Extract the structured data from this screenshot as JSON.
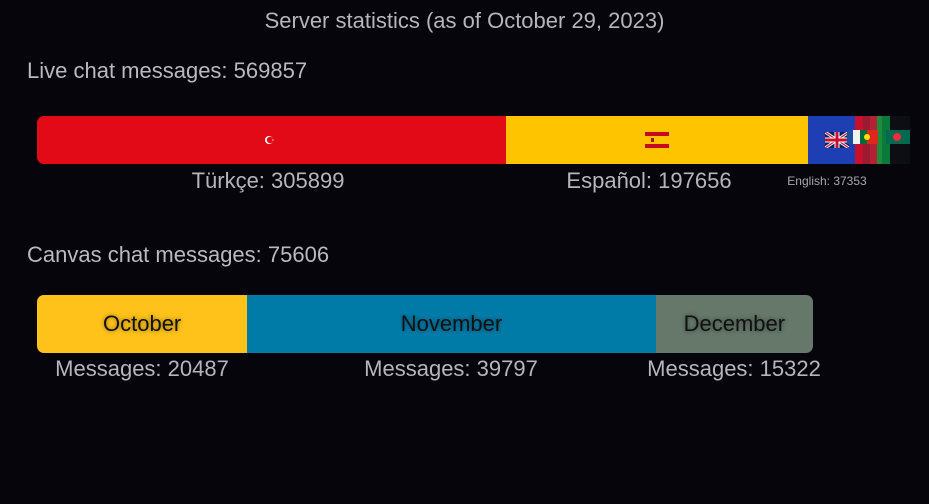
{
  "page": {
    "title": "Server statistics (as of October 29, 2023)"
  },
  "live_chat": {
    "heading": "Live chat messages: 569857",
    "total": 569857,
    "languages": [
      {
        "label": "Türkçe: 305899",
        "value": 305899,
        "color": "#e30a17",
        "flag": "turkey-flag-icon"
      },
      {
        "label": "Español: 197656",
        "value": 197656,
        "color": "#ffc400",
        "flag": "spain-flag-icon"
      },
      {
        "label": "English: 37353",
        "value": 37353,
        "color": "#1d3fb3",
        "flag": "uk-flag-icon"
      }
    ],
    "other_value": 28949
  },
  "canvas_chat": {
    "heading": "Canvas chat messages: 75606",
    "total": 75606,
    "months": [
      {
        "name": "October",
        "count_label": "Messages: 20487",
        "value": 20487,
        "color": "#ffc21a"
      },
      {
        "name": "November",
        "count_label": "Messages: 39797",
        "value": 39797,
        "color": "#007ba8"
      },
      {
        "name": "December",
        "count_label": "Messages: 15322",
        "value": 15322,
        "color": "#65786a"
      }
    ]
  },
  "chart_data": [
    {
      "type": "bar",
      "title": "Live chat messages: 569857",
      "categories": [
        "Türkçe",
        "Español",
        "English"
      ],
      "values": [
        305899,
        197656,
        37353
      ],
      "total": 569857
    },
    {
      "type": "bar",
      "title": "Canvas chat messages: 75606",
      "categories": [
        "October",
        "November",
        "December"
      ],
      "values": [
        20487,
        39797,
        15322
      ],
      "total": 75606
    }
  ]
}
